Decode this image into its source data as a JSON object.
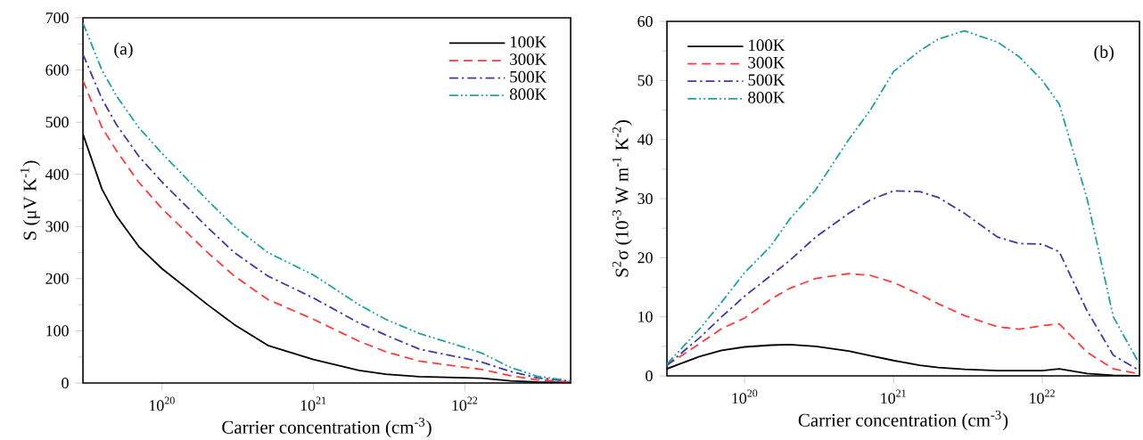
{
  "chart_data": [
    {
      "type": "line",
      "xlabel": "Carrier concentration (cm$^{-3}$)",
      "ylabel": "S (μV K$^{-1}$)",
      "log": "x",
      "grid": false,
      "legend": "top right",
      "marker": "none",
      "annotations": [
        "(a)"
      ],
      "xlim": [
        3e+19,
        5e+22
      ],
      "ylim": [
        0,
        700
      ],
      "xticks": [
        {
          "value": 1e+20,
          "label": "10$^{20}$"
        },
        {
          "value": 1e+21,
          "label": "10$^{21}$"
        },
        {
          "value": 1e+22,
          "label": "10$^{22}$"
        }
      ],
      "yticks": [
        0,
        100,
        200,
        300,
        400,
        500,
        600,
        700
      ],
      "x": [
        3e+19,
        4e+19,
        5e+19,
        7e+19,
        1e+20,
        2e+20,
        3e+20,
        5e+20,
        1e+21,
        2e+21,
        3e+21,
        5e+21,
        1e+22,
        1.3e+22,
        2e+22,
        3e+22,
        5e+22
      ],
      "series": [
        {
          "name": "100K",
          "color": "#000000",
          "line_style": "solid",
          "values": [
            477,
            372,
            320,
            262,
            219,
            150,
            112,
            72,
            45,
            24,
            17,
            12,
            10,
            9,
            4,
            2,
            1
          ]
        },
        {
          "name": "300K",
          "color": "#ff3b3b",
          "line_style": "dashed",
          "values": [
            580,
            490,
            445,
            385,
            334,
            250,
            205,
            160,
            122,
            80,
            60,
            42,
            30,
            26,
            14,
            6,
            2
          ]
        },
        {
          "name": "500K",
          "color": "#3a3aa8",
          "line_style": "dashdot",
          "values": [
            630,
            545,
            495,
            435,
            385,
            298,
            250,
            205,
            163,
            115,
            92,
            65,
            47,
            40,
            22,
            10,
            3
          ]
        },
        {
          "name": "800K",
          "color": "#23a0a0",
          "line_style": "dashdotdot",
          "values": [
            690,
            600,
            550,
            490,
            440,
            350,
            300,
            250,
            207,
            150,
            122,
            95,
            68,
            57,
            30,
            13,
            4
          ]
        }
      ]
    },
    {
      "type": "line",
      "xlabel": "Carrier concentration (cm$^{-3}$)",
      "ylabel": "S$^{2}$σ (10$^{-3}$ W m$^{-1}$ K$^{-2}$)",
      "log": "x",
      "grid": false,
      "legend": "top left",
      "marker": "none",
      "annotations": [
        "(b)"
      ],
      "xlim": [
        3e+19,
        4.5e+22
      ],
      "ylim": [
        0,
        60
      ],
      "xticks": [
        {
          "value": 1e+20,
          "label": "10$^{20}$"
        },
        {
          "value": 1e+21,
          "label": "10$^{21}$"
        },
        {
          "value": 1e+22,
          "label": "10$^{22}$"
        }
      ],
      "yticks": [
        0,
        10,
        20,
        30,
        40,
        50,
        60
      ],
      "x": [
        3e+19,
        5e+19,
        7e+19,
        1e+20,
        1.5e+20,
        2e+20,
        3e+20,
        5e+20,
        7e+20,
        1e+21,
        1.5e+21,
        2e+21,
        3e+21,
        5e+21,
        7e+21,
        1e+22,
        1.3e+22,
        2e+22,
        3e+22,
        4.5e+22
      ],
      "series": [
        {
          "name": "100K",
          "color": "#000000",
          "line_style": "solid",
          "values": [
            1.2,
            3.3,
            4.3,
            4.9,
            5.2,
            5.3,
            5.0,
            4.2,
            3.4,
            2.6,
            1.8,
            1.4,
            1.1,
            0.9,
            0.9,
            0.9,
            1.2,
            0.4,
            0.1,
            0.0
          ]
        },
        {
          "name": "300K",
          "color": "#ff3b3b",
          "line_style": "dashed",
          "values": [
            1.8,
            5.5,
            8,
            9.8,
            13,
            14.8,
            16.5,
            17.3,
            17.0,
            15.8,
            13.8,
            12.2,
            10.2,
            8.3,
            7.9,
            8.5,
            8.8,
            4,
            1.2,
            0.3
          ]
        },
        {
          "name": "500K",
          "color": "#3a3aa8",
          "line_style": "dashdot",
          "values": [
            1.8,
            6.5,
            10,
            13.5,
            17,
            19.5,
            23.5,
            27.5,
            29.8,
            31.3,
            31.2,
            30.2,
            27.5,
            23.5,
            22.4,
            22.3,
            21,
            11,
            3.5,
            0.9
          ]
        },
        {
          "name": "800K",
          "color": "#23a0a0",
          "line_style": "dashdotdot",
          "values": [
            2,
            8,
            12.5,
            17.5,
            22,
            26.5,
            31.5,
            40,
            45,
            51.5,
            55,
            57,
            58.4,
            56.5,
            54,
            50,
            46,
            30,
            10,
            2
          ]
        }
      ]
    }
  ]
}
